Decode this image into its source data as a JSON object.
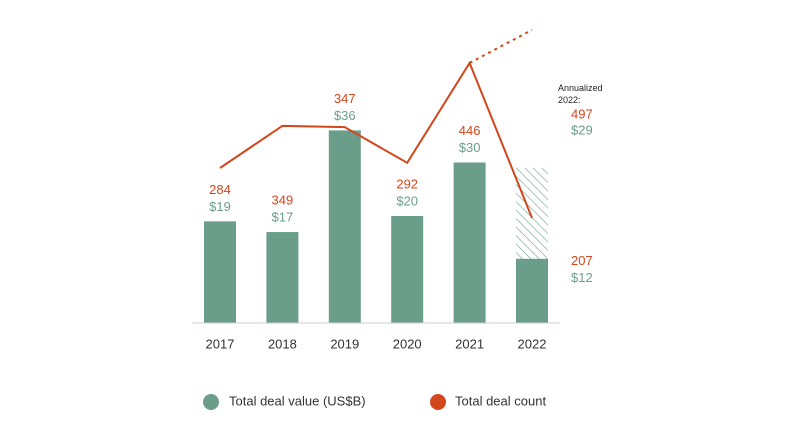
{
  "chart_data": {
    "type": "combo",
    "categories": [
      "2017",
      "2018",
      "2019",
      "2020",
      "2021",
      "2022"
    ],
    "series": [
      {
        "name": "Total deal value (US$B)",
        "type": "bar",
        "color": "#6a9e8a",
        "values": [
          19,
          17,
          36,
          20,
          30,
          12
        ],
        "value_labels": [
          "$19",
          "$17",
          "$36",
          "$20",
          "$30",
          "$12"
        ]
      },
      {
        "name": "Total deal count",
        "type": "line",
        "axis": "y2",
        "color": "#d2461c",
        "values": [
          284,
          349,
          347,
          292,
          446,
          207
        ]
      }
    ],
    "annualized": {
      "label": "Annualized 2022:",
      "value": 29,
      "value_label": "$29",
      "count": 497
    },
    "ylim": [
      0,
      60
    ],
    "y2lim": [
      45,
      540
    ]
  }
}
